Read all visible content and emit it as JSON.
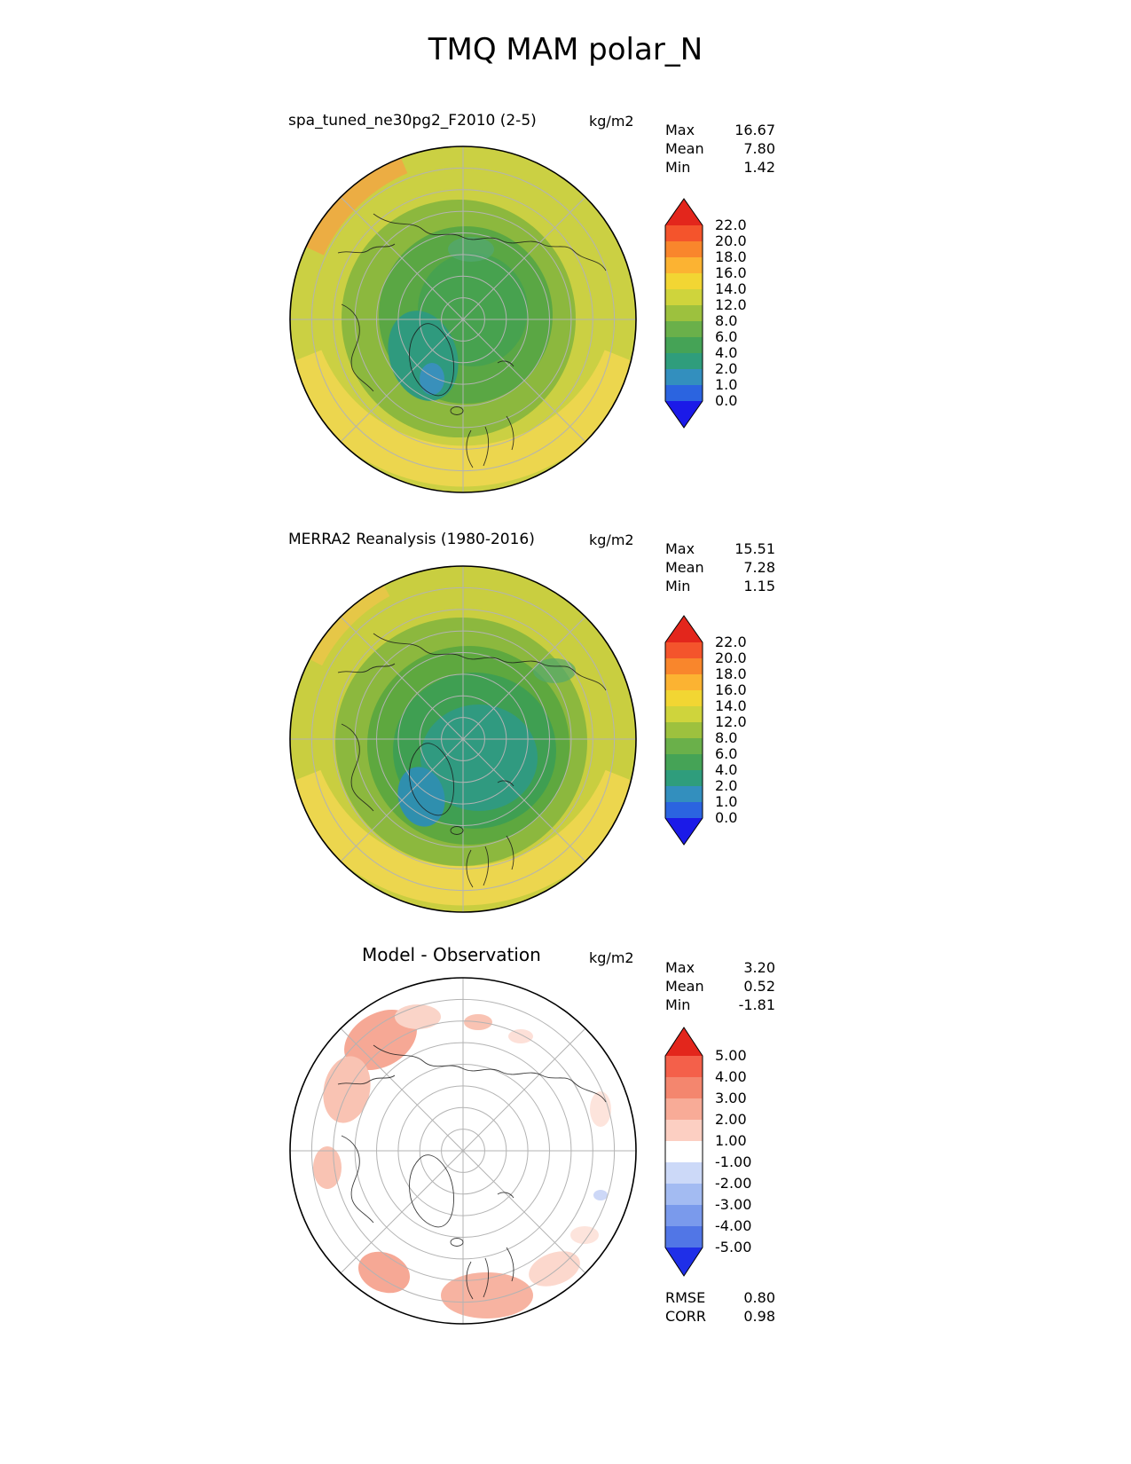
{
  "page_title": "TMQ MAM polar_N",
  "chart_data": [
    {
      "type": "heatmap",
      "projection": "north polar stereographic",
      "title": "spa_tuned_ne30pg2_F2010 (2-5)",
      "units": "kg/m2",
      "stats": {
        "max_label": "Max",
        "max": "16.67",
        "mean_label": "Mean",
        "mean": "7.80",
        "min_label": "Min",
        "min": "1.42"
      },
      "colorbar": {
        "levels": [
          0.0,
          1.0,
          2.0,
          4.0,
          6.0,
          8.0,
          12.0,
          14.0,
          16.0,
          18.0,
          20.0,
          22.0
        ],
        "labels_top_to_bottom": [
          "22.0",
          "20.0",
          "18.0",
          "16.0",
          "14.0",
          "12.0",
          "8.0",
          "6.0",
          "4.0",
          "2.0",
          "1.0",
          "0.0"
        ],
        "colors_top_to_bottom": [
          "#e3261c",
          "#f4542c",
          "#f9862c",
          "#fcb332",
          "#f2d633",
          "#cfd43c",
          "#9dc13e",
          "#6ab04a",
          "#45a356",
          "#2f9d7c",
          "#338fbe",
          "#2b64e0",
          "#1b1ae8"
        ]
      }
    },
    {
      "type": "heatmap",
      "projection": "north polar stereographic",
      "title": "MERRA2 Reanalysis (1980-2016)",
      "units": "kg/m2",
      "stats": {
        "max_label": "Max",
        "max": "15.51",
        "mean_label": "Mean",
        "mean": "7.28",
        "min_label": "Min",
        "min": "1.15"
      },
      "colorbar": {
        "levels": [
          0.0,
          1.0,
          2.0,
          4.0,
          6.0,
          8.0,
          12.0,
          14.0,
          16.0,
          18.0,
          20.0,
          22.0
        ],
        "labels_top_to_bottom": [
          "22.0",
          "20.0",
          "18.0",
          "16.0",
          "14.0",
          "12.0",
          "8.0",
          "6.0",
          "4.0",
          "2.0",
          "1.0",
          "0.0"
        ],
        "colors_top_to_bottom": [
          "#e3261c",
          "#f4542c",
          "#f9862c",
          "#fcb332",
          "#f2d633",
          "#cfd43c",
          "#9dc13e",
          "#6ab04a",
          "#45a356",
          "#2f9d7c",
          "#338fbe",
          "#2b64e0",
          "#1b1ae8"
        ]
      }
    },
    {
      "type": "heatmap",
      "projection": "north polar stereographic",
      "title": "Model - Observation",
      "units": "kg/m2",
      "stats": {
        "max_label": "Max",
        "max": "3.20",
        "mean_label": "Mean",
        "mean": "0.52",
        "min_label": "Min",
        "min": "-1.81"
      },
      "colorbar": {
        "levels": [
          -5.0,
          -4.0,
          -3.0,
          -2.0,
          -1.0,
          1.0,
          2.0,
          3.0,
          4.0,
          5.0
        ],
        "labels_top_to_bottom": [
          "5.00",
          "4.00",
          "3.00",
          "2.00",
          "1.00",
          "-1.00",
          "-2.00",
          "-3.00",
          "-4.00",
          "-5.00"
        ],
        "colors_top_to_bottom": [
          "#e3261c",
          "#f4604a",
          "#f4866e",
          "#f8ab97",
          "#fccfc2",
          "#ffffff",
          "#ccd9f8",
          "#a3bbf2",
          "#7a9aec",
          "#5176e6",
          "#1f2fe8"
        ]
      },
      "metrics": {
        "rmse_label": "RMSE",
        "rmse": "0.80",
        "corr_label": "CORR",
        "corr": "0.98"
      }
    }
  ]
}
